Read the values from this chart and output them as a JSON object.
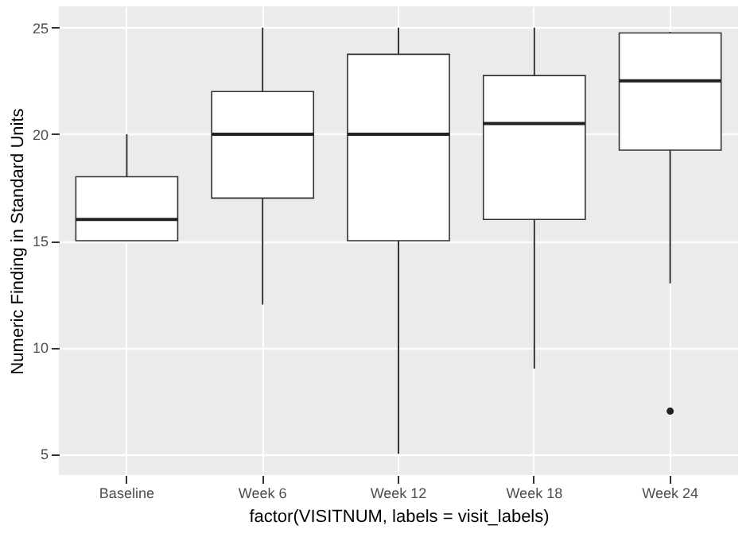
{
  "chart_data": {
    "type": "box",
    "xlabel": "factor(VISITNUM, labels = visit_labels)",
    "ylabel": "Numeric Finding in Standard Units",
    "categories": [
      "Baseline",
      "Week 6",
      "Week 12",
      "Week 18",
      "Week 24"
    ],
    "boxes": [
      {
        "low": 15,
        "q1": 15,
        "median": 16,
        "q3": 18,
        "high": 20
      },
      {
        "low": 12,
        "q1": 17,
        "median": 20,
        "q3": 22,
        "high": 25
      },
      {
        "low": 5,
        "q1": 15,
        "median": 20,
        "q3": 23.75,
        "high": 25
      },
      {
        "low": 9,
        "q1": 16,
        "median": 20.5,
        "q3": 22.75,
        "high": 25
      },
      {
        "low": 13,
        "q1": 19.25,
        "median": 22.5,
        "q3": 24.75,
        "high": 24.8,
        "outliers": [
          7
        ]
      }
    ],
    "ylim": [
      4,
      26
    ],
    "yticks": [
      5,
      10,
      15,
      20,
      25
    ],
    "grid": true
  }
}
